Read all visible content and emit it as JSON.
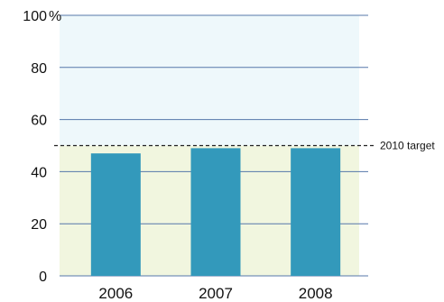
{
  "chart_data": {
    "type": "bar",
    "categories": [
      "2006",
      "2007",
      "2008"
    ],
    "values": [
      47,
      49,
      49
    ],
    "ylim": [
      0,
      100
    ],
    "yticks": [
      0,
      20,
      40,
      60,
      80,
      100
    ],
    "ytick_labels": [
      "0",
      "20",
      "40",
      "60",
      "80",
      "100"
    ],
    "y_unit": "%",
    "grid": "horizontal",
    "target": {
      "value": 50,
      "label": "2010 target"
    },
    "colors": {
      "bar": "#3399bb",
      "grid": "#5577aa",
      "band_above_target": "#eef8fb",
      "band_below_target": "#f1f6df",
      "target_line": "#222222"
    }
  }
}
